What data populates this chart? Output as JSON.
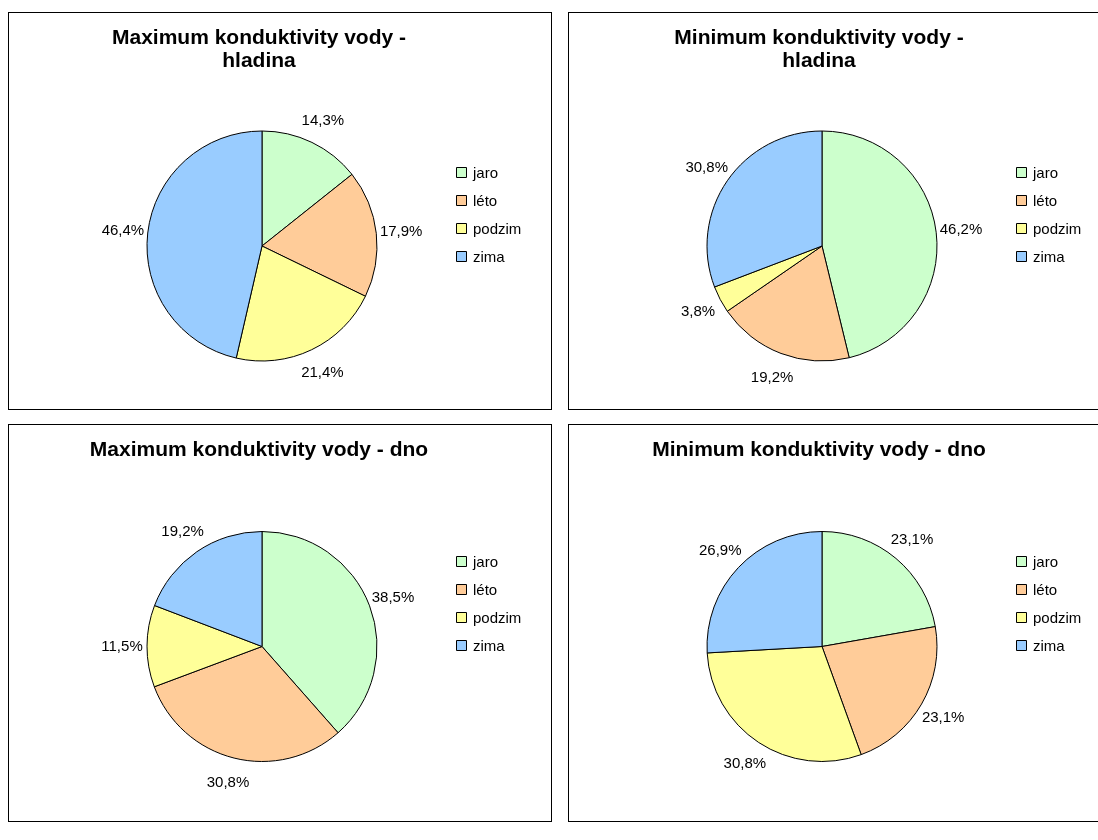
{
  "chart_data": [
    {
      "type": "pie",
      "title": "Maximum konduktivity vody - hladina",
      "categories": [
        "jaro",
        "léto",
        "podzim",
        "zima"
      ],
      "values": [
        14.3,
        17.9,
        21.4,
        46.4
      ],
      "value_labels": [
        "14,3%",
        "17,9%",
        "21,4%",
        "46,4%"
      ],
      "colors": [
        "#ccffcc",
        "#ffcc99",
        "#ffff99",
        "#99ccff"
      ],
      "legend": "right"
    },
    {
      "type": "pie",
      "title": "Minimum konduktivity vody - hladina",
      "categories": [
        "jaro",
        "léto",
        "podzim",
        "zima"
      ],
      "values": [
        46.2,
        19.2,
        3.8,
        30.8
      ],
      "value_labels": [
        "46,2%",
        "19,2%",
        "3,8%",
        "30,8%"
      ],
      "colors": [
        "#ccffcc",
        "#ffcc99",
        "#ffff99",
        "#99ccff"
      ],
      "legend": "right"
    },
    {
      "type": "pie",
      "title": "Maximum konduktivity vody - dno",
      "categories": [
        "jaro",
        "léto",
        "podzim",
        "zima"
      ],
      "values": [
        38.5,
        30.8,
        11.5,
        19.2
      ],
      "value_labels": [
        "38,5%",
        "30,8%",
        "11,5%",
        "19,2%"
      ],
      "colors": [
        "#ccffcc",
        "#ffcc99",
        "#ffff99",
        "#99ccff"
      ],
      "legend": "right"
    },
    {
      "type": "pie",
      "title": "Minimum konduktivity vody - dno",
      "categories": [
        "jaro",
        "léto",
        "podzim",
        "zima"
      ],
      "values": [
        23.1,
        23.1,
        30.8,
        26.9
      ],
      "value_labels": [
        "23,1%",
        "23,1%",
        "30,8%",
        "26,9%"
      ],
      "colors": [
        "#ccffcc",
        "#ffcc99",
        "#ffff99",
        "#99ccff"
      ],
      "legend": "right"
    }
  ]
}
